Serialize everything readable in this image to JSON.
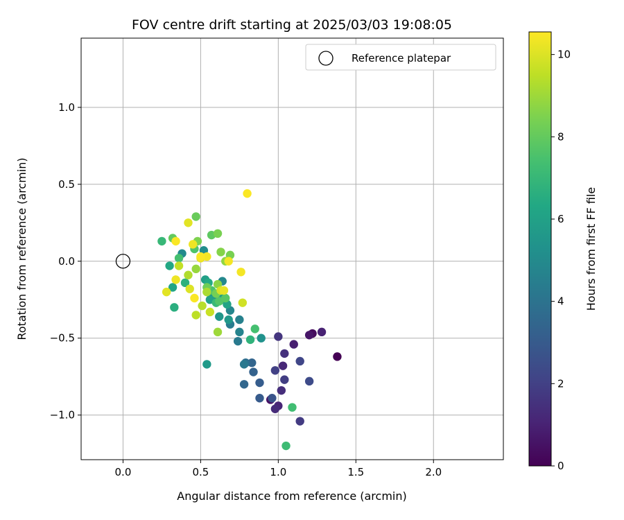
{
  "chart_data": {
    "type": "scatter",
    "title": "FOV centre drift starting at 2025/03/03 19:08:05",
    "xlabel": "Angular distance from reference (arcmin)",
    "ylabel": "Rotation from reference (arcmin)",
    "xlim": [
      -0.27,
      2.45
    ],
    "ylim": [
      -1.29,
      1.45
    ],
    "x_ticks": [
      0.0,
      0.5,
      1.0,
      1.5,
      2.0
    ],
    "x_tick_labels": [
      "0.0",
      "0.5",
      "1.0",
      "1.5",
      "2.0"
    ],
    "y_ticks": [
      -1.0,
      -0.5,
      0.0,
      0.5,
      1.0
    ],
    "y_tick_labels": [
      "−1.0",
      "−0.5",
      "0.0",
      "0.5",
      "1.0"
    ],
    "grid": true,
    "legend": {
      "placement": "top-right",
      "entries": [
        "Reference platepar"
      ]
    },
    "reference_point": {
      "label": "Reference platepar",
      "x": 0.0,
      "y": 0.0
    },
    "colorbar": {
      "label": "Hours from first FF file",
      "min": 0,
      "max": 10.55,
      "ticks": [
        0,
        2,
        4,
        6,
        8,
        10
      ],
      "tick_labels": [
        "0",
        "2",
        "4",
        "6",
        "8",
        "10"
      ],
      "colormap": "viridis"
    },
    "series": [
      {
        "points": [
          {
            "x": 1.38,
            "y": -0.62,
            "c": 0.0
          },
          {
            "x": 1.22,
            "y": -0.47,
            "c": 0.3
          },
          {
            "x": 0.95,
            "y": -0.9,
            "c": 0.5
          },
          {
            "x": 1.2,
            "y": -0.48,
            "c": 0.6
          },
          {
            "x": 1.1,
            "y": -0.54,
            "c": 0.9
          },
          {
            "x": 1.28,
            "y": -0.46,
            "c": 1.0
          },
          {
            "x": 1.0,
            "y": -0.94,
            "c": 1.1
          },
          {
            "x": 1.03,
            "y": -0.68,
            "c": 1.2
          },
          {
            "x": 0.98,
            "y": -0.96,
            "c": 1.3
          },
          {
            "x": 1.02,
            "y": -0.84,
            "c": 1.4
          },
          {
            "x": 1.04,
            "y": -0.6,
            "c": 1.5
          },
          {
            "x": 1.0,
            "y": -0.49,
            "c": 1.6
          },
          {
            "x": 1.14,
            "y": -1.04,
            "c": 1.8
          },
          {
            "x": 1.04,
            "y": -0.77,
            "c": 1.9
          },
          {
            "x": 0.98,
            "y": -0.71,
            "c": 2.0
          },
          {
            "x": 1.14,
            "y": -0.65,
            "c": 2.2
          },
          {
            "x": 1.2,
            "y": -0.78,
            "c": 2.4
          },
          {
            "x": 0.96,
            "y": -0.89,
            "c": 2.7
          },
          {
            "x": 0.88,
            "y": -0.89,
            "c": 3.0
          },
          {
            "x": 0.88,
            "y": -0.79,
            "c": 3.1
          },
          {
            "x": 0.84,
            "y": -0.72,
            "c": 3.3
          },
          {
            "x": 0.83,
            "y": -0.66,
            "c": 3.4
          },
          {
            "x": 0.78,
            "y": -0.8,
            "c": 3.5
          },
          {
            "x": 0.79,
            "y": -0.66,
            "c": 3.8
          },
          {
            "x": 0.78,
            "y": -0.67,
            "c": 4.2
          },
          {
            "x": 0.74,
            "y": -0.52,
            "c": 4.3
          },
          {
            "x": 0.69,
            "y": -0.41,
            "c": 4.4
          },
          {
            "x": 0.75,
            "y": -0.38,
            "c": 4.6
          },
          {
            "x": 0.75,
            "y": -0.46,
            "c": 4.7
          },
          {
            "x": 0.69,
            "y": -0.32,
            "c": 4.8
          },
          {
            "x": 0.64,
            "y": -0.13,
            "c": 4.9
          },
          {
            "x": 0.38,
            "y": 0.05,
            "c": 5.0
          },
          {
            "x": 0.52,
            "y": 0.07,
            "c": 5.1
          },
          {
            "x": 0.55,
            "y": -0.2,
            "c": 5.2
          },
          {
            "x": 0.89,
            "y": -0.5,
            "c": 5.3
          },
          {
            "x": 0.59,
            "y": -0.23,
            "c": 5.4
          },
          {
            "x": 0.62,
            "y": -0.36,
            "c": 5.5
          },
          {
            "x": 0.68,
            "y": -0.38,
            "c": 5.6
          },
          {
            "x": 0.54,
            "y": -0.67,
            "c": 5.7
          },
          {
            "x": 0.64,
            "y": -0.24,
            "c": 5.8
          },
          {
            "x": 0.53,
            "y": -0.12,
            "c": 5.9
          },
          {
            "x": 0.56,
            "y": -0.25,
            "c": 6.0
          },
          {
            "x": 0.67,
            "y": -0.28,
            "c": 6.1
          },
          {
            "x": 0.32,
            "y": -0.17,
            "c": 6.2
          },
          {
            "x": 0.3,
            "y": -0.03,
            "c": 6.3
          },
          {
            "x": 0.55,
            "y": -0.14,
            "c": 6.4
          },
          {
            "x": 0.33,
            "y": -0.3,
            "c": 6.6
          },
          {
            "x": 0.4,
            "y": -0.14,
            "c": 6.7
          },
          {
            "x": 0.82,
            "y": -0.51,
            "c": 6.8
          },
          {
            "x": 0.25,
            "y": 0.13,
            "c": 7.0
          },
          {
            "x": 0.6,
            "y": -0.27,
            "c": 7.1
          },
          {
            "x": 1.05,
            "y": -1.2,
            "c": 7.2
          },
          {
            "x": 1.09,
            "y": -0.95,
            "c": 7.3
          },
          {
            "x": 0.85,
            "y": -0.44,
            "c": 7.4
          },
          {
            "x": 0.36,
            "y": 0.02,
            "c": 7.4
          },
          {
            "x": 0.57,
            "y": -0.19,
            "c": 7.5
          },
          {
            "x": 0.46,
            "y": 0.08,
            "c": 7.6
          },
          {
            "x": 0.62,
            "y": -0.26,
            "c": 7.7
          },
          {
            "x": 0.66,
            "y": -0.24,
            "c": 7.8
          },
          {
            "x": 0.57,
            "y": 0.17,
            "c": 7.9
          },
          {
            "x": 0.32,
            "y": 0.15,
            "c": 8.0
          },
          {
            "x": 0.47,
            "y": 0.29,
            "c": 8.1
          },
          {
            "x": 0.54,
            "y": -0.17,
            "c": 8.2
          },
          {
            "x": 0.6,
            "y": -0.21,
            "c": 8.3
          },
          {
            "x": 0.69,
            "y": 0.04,
            "c": 8.4
          },
          {
            "x": 0.61,
            "y": 0.18,
            "c": 8.4
          },
          {
            "x": 0.48,
            "y": 0.13,
            "c": 8.5
          },
          {
            "x": 0.63,
            "y": 0.06,
            "c": 8.6
          },
          {
            "x": 0.61,
            "y": -0.15,
            "c": 8.7
          },
          {
            "x": 0.66,
            "y": 0.0,
            "c": 8.8
          },
          {
            "x": 0.47,
            "y": -0.05,
            "c": 8.9
          },
          {
            "x": 0.61,
            "y": -0.46,
            "c": 9.0
          },
          {
            "x": 0.54,
            "y": -0.2,
            "c": 9.2
          },
          {
            "x": 0.42,
            "y": -0.09,
            "c": 9.3
          },
          {
            "x": 0.51,
            "y": -0.29,
            "c": 9.4
          },
          {
            "x": 0.47,
            "y": -0.35,
            "c": 9.5
          },
          {
            "x": 0.36,
            "y": -0.03,
            "c": 9.6
          },
          {
            "x": 0.56,
            "y": -0.33,
            "c": 9.7
          },
          {
            "x": 0.77,
            "y": -0.27,
            "c": 9.8
          },
          {
            "x": 0.63,
            "y": -0.19,
            "c": 9.9
          },
          {
            "x": 0.43,
            "y": -0.18,
            "c": 10.0
          },
          {
            "x": 0.42,
            "y": 0.25,
            "c": 10.1
          },
          {
            "x": 0.28,
            "y": -0.2,
            "c": 10.1
          },
          {
            "x": 0.5,
            "y": 0.02,
            "c": 10.2
          },
          {
            "x": 0.65,
            "y": -0.19,
            "c": 10.2
          },
          {
            "x": 0.34,
            "y": -0.12,
            "c": 10.3
          },
          {
            "x": 0.45,
            "y": 0.11,
            "c": 10.3
          },
          {
            "x": 0.76,
            "y": -0.07,
            "c": 10.4
          },
          {
            "x": 0.54,
            "y": 0.03,
            "c": 10.4
          },
          {
            "x": 0.68,
            "y": 0.0,
            "c": 10.4
          },
          {
            "x": 0.8,
            "y": 0.44,
            "c": 10.5
          },
          {
            "x": 0.34,
            "y": 0.13,
            "c": 10.5
          },
          {
            "x": 0.46,
            "y": -0.24,
            "c": 10.5
          },
          {
            "x": 0.5,
            "y": 0.03,
            "c": 10.5
          }
        ]
      }
    ]
  }
}
